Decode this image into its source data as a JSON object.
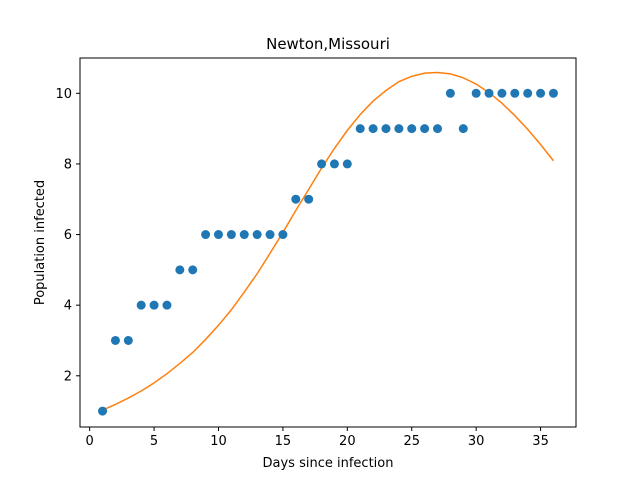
{
  "chart_data": {
    "type": "scatter",
    "title": "Newton,Missouri",
    "xlabel": "Days since infection",
    "ylabel": "Population infected",
    "xlim": [
      -0.75,
      37.75
    ],
    "ylim": [
      0.55,
      11.0
    ],
    "xticks": [
      0,
      5,
      10,
      15,
      20,
      25,
      30,
      35
    ],
    "yticks": [
      2,
      4,
      6,
      8,
      10
    ],
    "grid": false,
    "series": [
      {
        "kind": "scatter",
        "color": "#1f77b4",
        "x": [
          1,
          2,
          3,
          4,
          5,
          6,
          7,
          8,
          9,
          10,
          11,
          12,
          13,
          14,
          15,
          16,
          17,
          18,
          19,
          20,
          21,
          22,
          23,
          24,
          25,
          26,
          27,
          28,
          29,
          30,
          31,
          32,
          33,
          34,
          35,
          36
        ],
        "y": [
          1,
          3,
          3,
          4,
          4,
          4,
          5,
          5,
          6,
          6,
          6,
          6,
          6,
          6,
          6,
          7,
          7,
          8,
          8,
          8,
          9,
          9,
          9,
          9,
          9,
          9,
          9,
          10,
          9,
          10,
          10,
          10,
          10,
          10,
          10,
          10
        ]
      },
      {
        "kind": "line",
        "color": "#ff7f0e",
        "x": [
          1,
          2,
          3,
          4,
          5,
          6,
          7,
          8,
          9,
          10,
          11,
          12,
          13,
          14,
          15,
          16,
          17,
          18,
          19,
          20,
          21,
          22,
          23,
          24,
          25,
          26,
          27,
          28,
          29,
          30,
          31,
          32,
          33,
          34,
          35,
          36
        ],
        "y": [
          1.03,
          1.19,
          1.37,
          1.57,
          1.8,
          2.06,
          2.35,
          2.66,
          3.03,
          3.43,
          3.87,
          4.37,
          4.89,
          5.47,
          6.06,
          6.68,
          7.28,
          7.88,
          8.44,
          8.95,
          9.4,
          9.78,
          10.08,
          10.33,
          10.48,
          10.57,
          10.59,
          10.55,
          10.44,
          10.26,
          10.02,
          9.72,
          9.37,
          8.98,
          8.55,
          8.09
        ]
      }
    ]
  }
}
